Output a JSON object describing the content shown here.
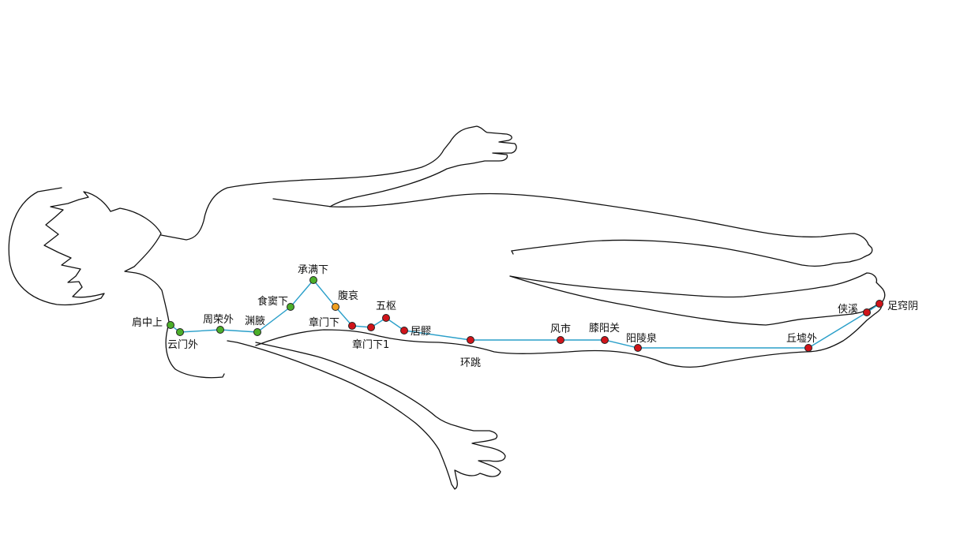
{
  "colors": {
    "background": "#ffffff",
    "outline": "#111111",
    "meridian_line": "#2a9fc9",
    "point_green": "#4caf2a",
    "point_orange": "#f0a020",
    "point_red": "#d0141a"
  },
  "points": [
    {
      "id": "jianzhongshang",
      "label": "肩中上",
      "color": "green"
    },
    {
      "id": "yunmenwai",
      "label": "云门外",
      "color": "green"
    },
    {
      "id": "zhourongwai",
      "label": "周荣外",
      "color": "green"
    },
    {
      "id": "yuanye",
      "label": "渊腋",
      "color": "green"
    },
    {
      "id": "shidouxia",
      "label": "食窦下",
      "color": "green"
    },
    {
      "id": "chengmanxia",
      "label": "承满下",
      "color": "green"
    },
    {
      "id": "fuai",
      "label": "腹哀",
      "color": "orange"
    },
    {
      "id": "zhangmenxia",
      "label": "章门下",
      "color": "red"
    },
    {
      "id": "zhangmenxia1",
      "label": "章门下1",
      "color": "red"
    },
    {
      "id": "wushu",
      "label": "五枢",
      "color": "red"
    },
    {
      "id": "juliao",
      "label": "居髎",
      "color": "red"
    },
    {
      "id": "huantiao",
      "label": "环跳",
      "color": "red"
    },
    {
      "id": "fengshi",
      "label": "风市",
      "color": "red"
    },
    {
      "id": "xiyangguan",
      "label": "膝阳关",
      "color": "red"
    },
    {
      "id": "yanglingquan",
      "label": "阳陵泉",
      "color": "red"
    },
    {
      "id": "qiuxuwai",
      "label": "丘墟外",
      "color": "red"
    },
    {
      "id": "xiaxi",
      "label": "侠溪",
      "color": "red"
    },
    {
      "id": "zuqiaoyin",
      "label": "足窍阴",
      "color": "red"
    }
  ]
}
